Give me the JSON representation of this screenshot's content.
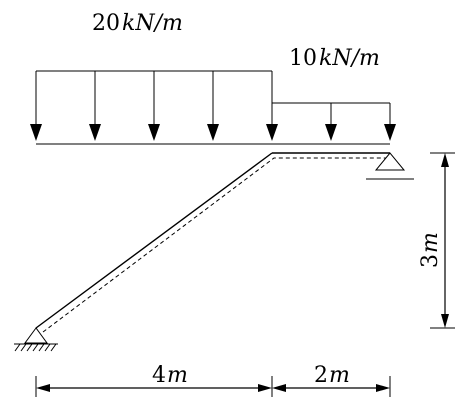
{
  "loads": {
    "left": {
      "value": "20",
      "unit": "kN/m"
    },
    "right": {
      "value": "10",
      "unit": "kN/m"
    }
  },
  "dimensions": {
    "horizontal_left": {
      "value": "4",
      "unit": "m"
    },
    "horizontal_right": {
      "value": "2",
      "unit": "m"
    },
    "vertical": {
      "value": "3",
      "unit": "m"
    }
  },
  "supports": {
    "left": "fixed-pin",
    "right": "roller"
  },
  "colors": {
    "stroke": "#000000",
    "background": "#ffffff"
  }
}
